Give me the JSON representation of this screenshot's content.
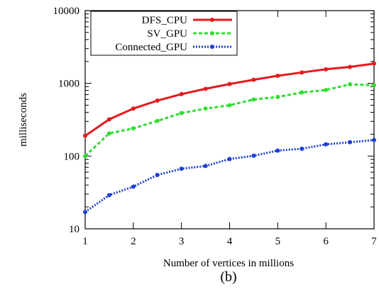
{
  "chart_data": {
    "type": "line",
    "title": "",
    "xlabel": "Number of vertices in millions",
    "ylabel": "milliseconds",
    "caption": "(b)",
    "xlim": [
      1,
      7
    ],
    "ylim": [
      10,
      10000
    ],
    "yscale": "log",
    "xticks": [
      "1",
      "2",
      "3",
      "4",
      "5",
      "6",
      "7"
    ],
    "xtick_values": [
      1,
      2,
      3,
      4,
      5,
      6,
      7
    ],
    "yticks": [
      "10",
      "100",
      "1000",
      "10000"
    ],
    "ytick_values": [
      10,
      100,
      1000,
      10000
    ],
    "grid": false,
    "legend_position": "top-left",
    "x": [
      1,
      1.5,
      2,
      2.5,
      3,
      3.5,
      4,
      4.5,
      5,
      5.5,
      6,
      6.5,
      7
    ],
    "series": [
      {
        "name": "DFS_CPU",
        "color": "#e41a1c",
        "style": "solid",
        "values": [
          190,
          320,
          450,
          580,
          710,
          840,
          980,
          1120,
          1270,
          1410,
          1560,
          1680,
          1870
        ]
      },
      {
        "name": "SV_GPU",
        "color": "#33dd33",
        "style": "dashed",
        "values": [
          100,
          205,
          240,
          305,
          390,
          450,
          500,
          600,
          650,
          750,
          810,
          970,
          940
        ]
      },
      {
        "name": "Connected_GPU",
        "color": "#1a3fd6",
        "style": "dotted",
        "values": [
          17,
          29,
          38,
          55,
          67,
          73,
          91,
          101,
          119,
          126,
          145,
          155,
          166
        ]
      }
    ]
  }
}
